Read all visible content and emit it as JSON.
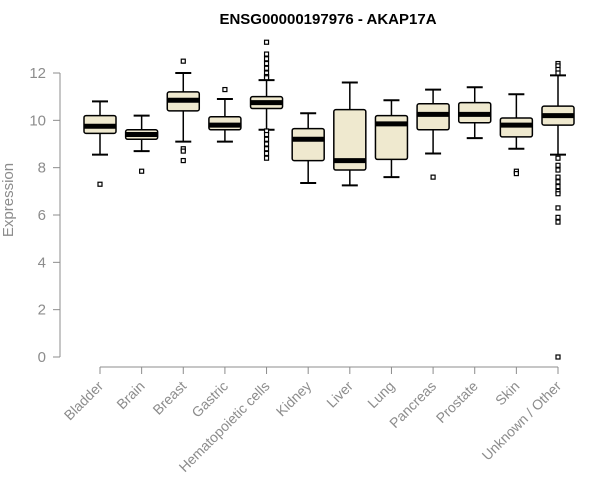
{
  "chart_data": {
    "type": "boxplot",
    "title": "ENSG00000197976 - AKAP17A",
    "xlabel": "",
    "ylabel": "Expression",
    "ylim": [
      0,
      13.5
    ],
    "yticks": [
      0,
      2,
      4,
      6,
      8,
      10,
      12
    ],
    "categories": [
      "Bladder",
      "Brain",
      "Breast",
      "Gastric",
      "Hematopoietic cells",
      "Kidney",
      "Liver",
      "Lung",
      "Pancreas",
      "Prostate",
      "Skin",
      "Unknown / Other"
    ],
    "boxes": [
      {
        "whisker_low": 8.55,
        "q1": 9.45,
        "median": 9.75,
        "q3": 10.2,
        "whisker_high": 10.8,
        "outliers": [
          7.3
        ]
      },
      {
        "whisker_low": 8.7,
        "q1": 9.2,
        "median": 9.4,
        "q3": 9.6,
        "whisker_high": 10.2,
        "outliers": [
          7.85
        ]
      },
      {
        "whisker_low": 9.1,
        "q1": 10.4,
        "median": 10.85,
        "q3": 11.2,
        "whisker_high": 12.0,
        "outliers": [
          12.5,
          8.8,
          8.7,
          8.3
        ]
      },
      {
        "whisker_low": 9.1,
        "q1": 9.6,
        "median": 9.8,
        "q3": 10.15,
        "whisker_high": 10.9,
        "outliers": [
          11.3
        ]
      },
      {
        "whisker_low": 9.6,
        "q1": 10.5,
        "median": 10.75,
        "q3": 11.0,
        "whisker_high": 11.7,
        "outliers": [
          13.3,
          12.8,
          12.6,
          12.4,
          12.2,
          12.0,
          11.85,
          11.8,
          9.55,
          9.4,
          9.2,
          9.0,
          8.8,
          8.6,
          8.4
        ]
      },
      {
        "whisker_low": 7.35,
        "q1": 8.3,
        "median": 9.2,
        "q3": 9.65,
        "whisker_high": 10.3,
        "outliers": []
      },
      {
        "whisker_low": 7.25,
        "q1": 7.9,
        "median": 8.3,
        "q3": 10.45,
        "whisker_high": 11.6,
        "outliers": []
      },
      {
        "whisker_low": 7.6,
        "q1": 8.35,
        "median": 9.85,
        "q3": 10.2,
        "whisker_high": 10.85,
        "outliers": []
      },
      {
        "whisker_low": 8.6,
        "q1": 9.6,
        "median": 10.25,
        "q3": 10.7,
        "whisker_high": 11.3,
        "outliers": [
          7.6
        ]
      },
      {
        "whisker_low": 9.25,
        "q1": 9.9,
        "median": 10.25,
        "q3": 10.75,
        "whisker_high": 11.4,
        "outliers": []
      },
      {
        "whisker_low": 8.8,
        "q1": 9.3,
        "median": 9.8,
        "q3": 10.1,
        "whisker_high": 11.1,
        "outliers": [
          7.85,
          7.75
        ]
      },
      {
        "whisker_low": 8.55,
        "q1": 9.8,
        "median": 10.2,
        "q3": 10.6,
        "whisker_high": 11.9,
        "outliers": [
          12.4,
          12.3,
          12.15,
          12.0,
          8.4,
          8.1,
          7.9,
          7.6,
          7.4,
          7.2,
          7.0,
          6.9,
          6.3,
          5.9,
          5.7,
          0.0
        ]
      }
    ],
    "box_fill": "#efe9cf",
    "box_stroke": "#000000",
    "axis_color": "#8c8c8c",
    "grid": false,
    "legend": "none"
  }
}
